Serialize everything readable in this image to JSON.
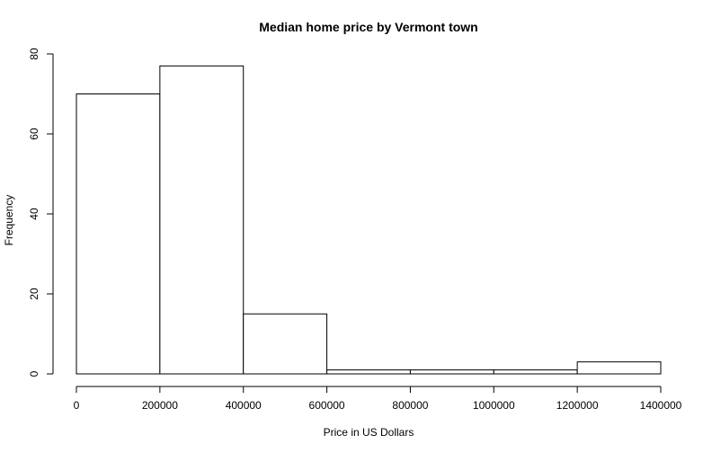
{
  "chart_data": {
    "type": "bar",
    "title": "Median home price by Vermont town",
    "xlabel": "Price in US Dollars",
    "ylabel": "Frequency",
    "bins": [
      {
        "start": 0,
        "end": 200000,
        "count": 70
      },
      {
        "start": 200000,
        "end": 400000,
        "count": 77
      },
      {
        "start": 400000,
        "end": 600000,
        "count": 15
      },
      {
        "start": 600000,
        "end": 800000,
        "count": 1
      },
      {
        "start": 800000,
        "end": 1000000,
        "count": 1
      },
      {
        "start": 1000000,
        "end": 1200000,
        "count": 1
      },
      {
        "start": 1200000,
        "end": 1400000,
        "count": 3
      }
    ],
    "xlim": [
      0,
      1400000
    ],
    "ylim": [
      0,
      80
    ],
    "x_ticks": [
      0,
      200000,
      400000,
      600000,
      800000,
      1000000,
      1200000,
      1400000
    ],
    "y_ticks": [
      0,
      20,
      40,
      60,
      80
    ],
    "grid": false,
    "bar_fill": "#ffffff",
    "bar_stroke": "#000000"
  }
}
